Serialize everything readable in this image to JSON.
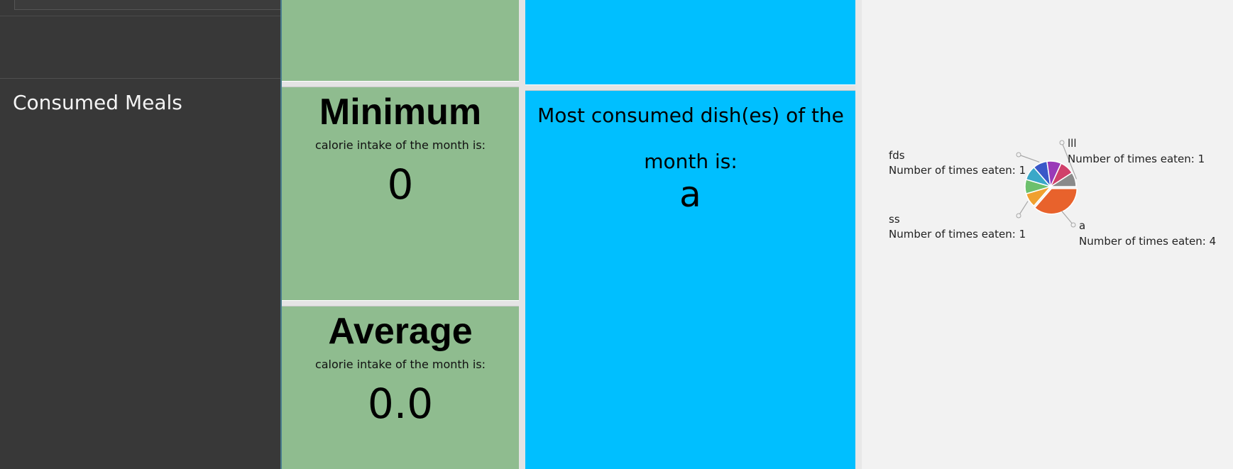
{
  "sidebar": {
    "section_title": "Consumed Meals"
  },
  "minimum": {
    "title": "Minimum",
    "subtitle": "calorie intake of the month is:",
    "value": "0"
  },
  "average": {
    "title": "Average",
    "subtitle": "calorie intake of the month is:",
    "value": "0.0"
  },
  "most_consumed": {
    "label": "Most consumed dish(es) of the month is:",
    "value": "a"
  },
  "chart_data": {
    "type": "pie",
    "title": "",
    "slices": [
      {
        "name": "a",
        "value": 4,
        "label": "Number of times eaten: 4",
        "color": "#e8622c"
      },
      {
        "name": "ss",
        "value": 1,
        "label": "Number of times eaten: 1",
        "color": "#f0a030"
      },
      {
        "name": "",
        "value": 1,
        "label": "",
        "color": "#6cc06c"
      },
      {
        "name": "",
        "value": 1,
        "label": "",
        "color": "#3aa8c8"
      },
      {
        "name": "fds",
        "value": 1,
        "label": "Number of times eaten: 1",
        "color": "#3a58c8"
      },
      {
        "name": "",
        "value": 1,
        "label": "",
        "color": "#9a3ab8"
      },
      {
        "name": "",
        "value": 1,
        "label": "",
        "color": "#d0406a"
      },
      {
        "name": "lll",
        "value": 1,
        "label": "Number of times eaten: 1",
        "color": "#8a8a8a"
      }
    ]
  }
}
